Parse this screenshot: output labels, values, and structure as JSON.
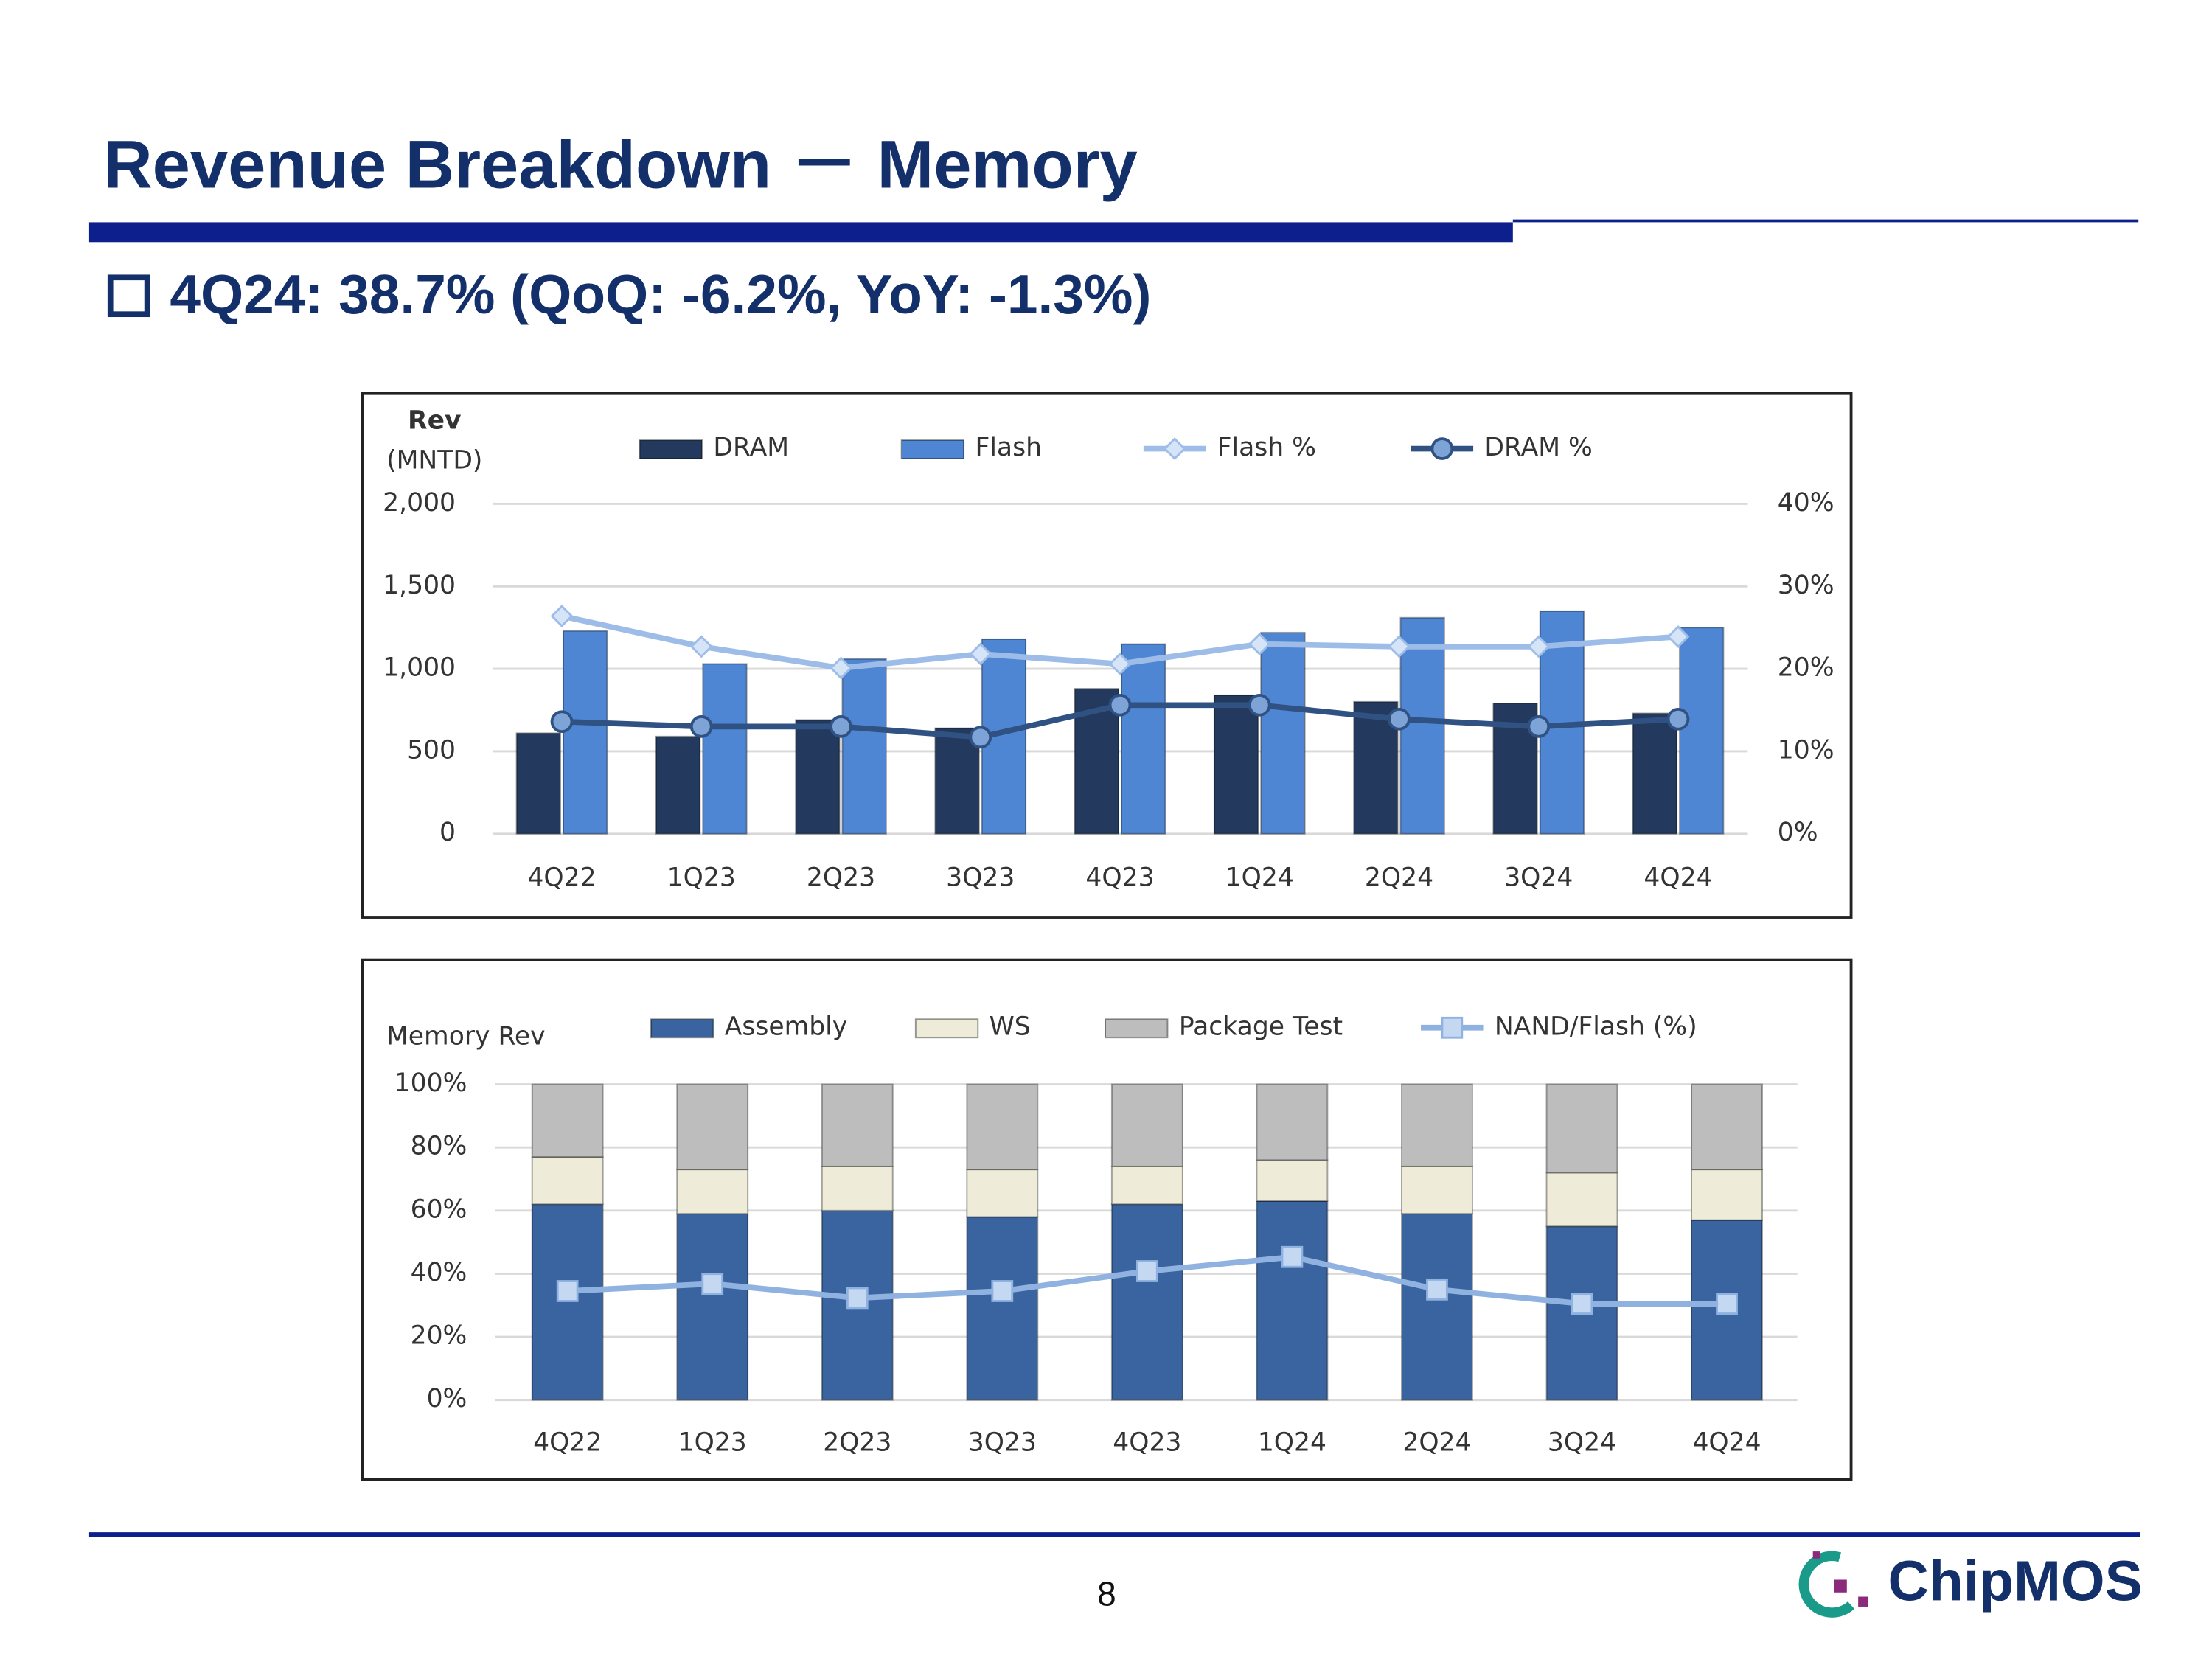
{
  "title": "Revenue Breakdown － Memory",
  "subtitle": "4Q24: 38.7% (QoQ: -6.2%, YoY: -1.3%)",
  "page_number": "8",
  "logo": "ChipMOS",
  "chart_data": [
    {
      "type": "bar",
      "ylabel": "Rev",
      "ylabel_unit": "(MNTD)",
      "categories": [
        "4Q22",
        "1Q23",
        "2Q23",
        "3Q23",
        "4Q23",
        "1Q24",
        "2Q24",
        "3Q24",
        "4Q24"
      ],
      "series": [
        {
          "name": "DRAM",
          "type": "bar",
          "color": "#23395d",
          "values": [
            610,
            590,
            690,
            640,
            880,
            840,
            800,
            790,
            730
          ]
        },
        {
          "name": "Flash",
          "type": "bar",
          "color": "#4f86d4",
          "values": [
            1230,
            1030,
            1060,
            1180,
            1150,
            1220,
            1310,
            1350,
            1250
          ]
        },
        {
          "name": "Flash %",
          "type": "line",
          "axis": "y2",
          "marker": "diamond",
          "color": "#9dbde8",
          "values": [
            26.4,
            22.7,
            20.1,
            21.8,
            20.6,
            23.0,
            22.7,
            22.7,
            23.9
          ]
        },
        {
          "name": "DRAM %",
          "type": "line",
          "axis": "y2",
          "marker": "circle",
          "color": "#2f5283",
          "values": [
            13.6,
            13.0,
            13.0,
            11.7,
            15.6,
            15.6,
            13.9,
            13.0,
            13.9
          ]
        }
      ],
      "ylim": [
        0,
        2000
      ],
      "yticks": [
        0,
        500,
        {
          "value": 1000,
          "label": "1,000"
        },
        {
          "value": 1500,
          "label": "1,500"
        },
        {
          "value": 2000,
          "label": "2,000"
        }
      ],
      "y2lim": [
        0,
        40
      ],
      "y2ticks": [
        {
          "value": 0,
          "label": "0%"
        },
        {
          "value": 10,
          "label": "10%"
        },
        {
          "value": 20,
          "label": "20%"
        },
        {
          "value": 30,
          "label": "30%"
        },
        {
          "value": 40,
          "label": "40%"
        }
      ],
      "grid": true,
      "legend": "top"
    },
    {
      "type": "bar",
      "stacked": true,
      "ylabel": "Memory Rev",
      "categories": [
        "4Q22",
        "1Q23",
        "2Q23",
        "3Q23",
        "4Q23",
        "1Q24",
        "2Q24",
        "3Q24",
        "4Q24"
      ],
      "series": [
        {
          "name": "Assembly",
          "type": "bar",
          "color": "#3a64a0",
          "values": [
            62,
            59,
            60,
            58,
            62,
            63,
            59,
            55,
            57
          ]
        },
        {
          "name": "WS",
          "type": "bar",
          "color": "#eeecd8",
          "values": [
            15,
            14,
            14,
            15,
            12,
            13,
            15,
            17,
            16
          ]
        },
        {
          "name": "Package Test",
          "type": "bar",
          "color": "#bdbdbd",
          "values": [
            23,
            27,
            26,
            27,
            26,
            24,
            26,
            28,
            27
          ]
        },
        {
          "name": "NAND/Flash (%)",
          "type": "line",
          "marker": "square",
          "color": "#8fb2e0",
          "values": [
            34.5,
            36.8,
            32.3,
            34.5,
            40.8,
            45.3,
            35.0,
            30.5,
            30.5
          ]
        }
      ],
      "ylim": [
        0,
        100
      ],
      "yticks": [
        {
          "value": 0,
          "label": "0%"
        },
        {
          "value": 20,
          "label": "20%"
        },
        {
          "value": 40,
          "label": "40%"
        },
        {
          "value": 60,
          "label": "60%"
        },
        {
          "value": 80,
          "label": "80%"
        },
        {
          "value": 100,
          "label": "100%"
        }
      ],
      "grid": true,
      "legend": "top"
    }
  ]
}
